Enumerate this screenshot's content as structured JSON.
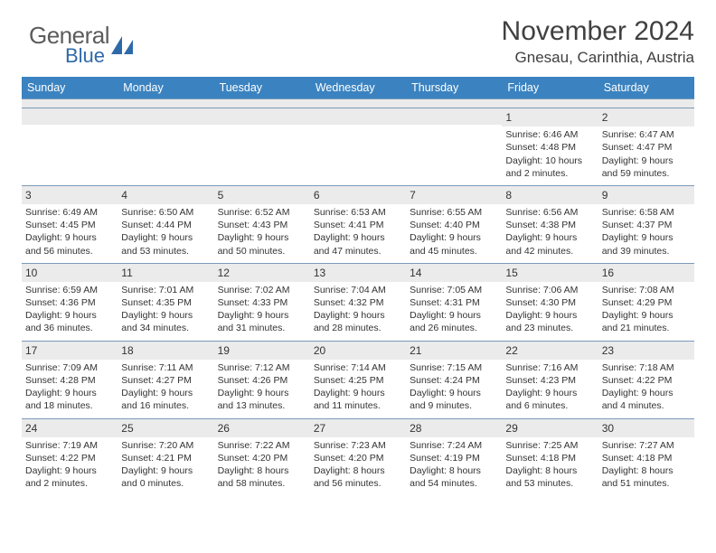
{
  "logo": {
    "main": "General",
    "sub": "Blue"
  },
  "title": "November 2024",
  "location": "Gnesau, Carinthia, Austria",
  "colors": {
    "header_bg": "#3b83c0",
    "header_fg": "#ffffff",
    "row_border": "#7a9abb",
    "daynum_bg": "#ebebeb",
    "text": "#333333",
    "logo_main": "#5c5c5c",
    "logo_sub": "#2f6aa8"
  },
  "day_headers": [
    "Sunday",
    "Monday",
    "Tuesday",
    "Wednesday",
    "Thursday",
    "Friday",
    "Saturday"
  ],
  "weeks": [
    [
      null,
      null,
      null,
      null,
      null,
      {
        "n": "1",
        "sunrise": "6:46 AM",
        "sunset": "4:48 PM",
        "daylight": "10 hours and 2 minutes."
      },
      {
        "n": "2",
        "sunrise": "6:47 AM",
        "sunset": "4:47 PM",
        "daylight": "9 hours and 59 minutes."
      }
    ],
    [
      {
        "n": "3",
        "sunrise": "6:49 AM",
        "sunset": "4:45 PM",
        "daylight": "9 hours and 56 minutes."
      },
      {
        "n": "4",
        "sunrise": "6:50 AM",
        "sunset": "4:44 PM",
        "daylight": "9 hours and 53 minutes."
      },
      {
        "n": "5",
        "sunrise": "6:52 AM",
        "sunset": "4:43 PM",
        "daylight": "9 hours and 50 minutes."
      },
      {
        "n": "6",
        "sunrise": "6:53 AM",
        "sunset": "4:41 PM",
        "daylight": "9 hours and 47 minutes."
      },
      {
        "n": "7",
        "sunrise": "6:55 AM",
        "sunset": "4:40 PM",
        "daylight": "9 hours and 45 minutes."
      },
      {
        "n": "8",
        "sunrise": "6:56 AM",
        "sunset": "4:38 PM",
        "daylight": "9 hours and 42 minutes."
      },
      {
        "n": "9",
        "sunrise": "6:58 AM",
        "sunset": "4:37 PM",
        "daylight": "9 hours and 39 minutes."
      }
    ],
    [
      {
        "n": "10",
        "sunrise": "6:59 AM",
        "sunset": "4:36 PM",
        "daylight": "9 hours and 36 minutes."
      },
      {
        "n": "11",
        "sunrise": "7:01 AM",
        "sunset": "4:35 PM",
        "daylight": "9 hours and 34 minutes."
      },
      {
        "n": "12",
        "sunrise": "7:02 AM",
        "sunset": "4:33 PM",
        "daylight": "9 hours and 31 minutes."
      },
      {
        "n": "13",
        "sunrise": "7:04 AM",
        "sunset": "4:32 PM",
        "daylight": "9 hours and 28 minutes."
      },
      {
        "n": "14",
        "sunrise": "7:05 AM",
        "sunset": "4:31 PM",
        "daylight": "9 hours and 26 minutes."
      },
      {
        "n": "15",
        "sunrise": "7:06 AM",
        "sunset": "4:30 PM",
        "daylight": "9 hours and 23 minutes."
      },
      {
        "n": "16",
        "sunrise": "7:08 AM",
        "sunset": "4:29 PM",
        "daylight": "9 hours and 21 minutes."
      }
    ],
    [
      {
        "n": "17",
        "sunrise": "7:09 AM",
        "sunset": "4:28 PM",
        "daylight": "9 hours and 18 minutes."
      },
      {
        "n": "18",
        "sunrise": "7:11 AM",
        "sunset": "4:27 PM",
        "daylight": "9 hours and 16 minutes."
      },
      {
        "n": "19",
        "sunrise": "7:12 AM",
        "sunset": "4:26 PM",
        "daylight": "9 hours and 13 minutes."
      },
      {
        "n": "20",
        "sunrise": "7:14 AM",
        "sunset": "4:25 PM",
        "daylight": "9 hours and 11 minutes."
      },
      {
        "n": "21",
        "sunrise": "7:15 AM",
        "sunset": "4:24 PM",
        "daylight": "9 hours and 9 minutes."
      },
      {
        "n": "22",
        "sunrise": "7:16 AM",
        "sunset": "4:23 PM",
        "daylight": "9 hours and 6 minutes."
      },
      {
        "n": "23",
        "sunrise": "7:18 AM",
        "sunset": "4:22 PM",
        "daylight": "9 hours and 4 minutes."
      }
    ],
    [
      {
        "n": "24",
        "sunrise": "7:19 AM",
        "sunset": "4:22 PM",
        "daylight": "9 hours and 2 minutes."
      },
      {
        "n": "25",
        "sunrise": "7:20 AM",
        "sunset": "4:21 PM",
        "daylight": "9 hours and 0 minutes."
      },
      {
        "n": "26",
        "sunrise": "7:22 AM",
        "sunset": "4:20 PM",
        "daylight": "8 hours and 58 minutes."
      },
      {
        "n": "27",
        "sunrise": "7:23 AM",
        "sunset": "4:20 PM",
        "daylight": "8 hours and 56 minutes."
      },
      {
        "n": "28",
        "sunrise": "7:24 AM",
        "sunset": "4:19 PM",
        "daylight": "8 hours and 54 minutes."
      },
      {
        "n": "29",
        "sunrise": "7:25 AM",
        "sunset": "4:18 PM",
        "daylight": "8 hours and 53 minutes."
      },
      {
        "n": "30",
        "sunrise": "7:27 AM",
        "sunset": "4:18 PM",
        "daylight": "8 hours and 51 minutes."
      }
    ]
  ],
  "labels": {
    "sunrise_prefix": "Sunrise: ",
    "sunset_prefix": "Sunset: ",
    "daylight_prefix": "Daylight: "
  }
}
